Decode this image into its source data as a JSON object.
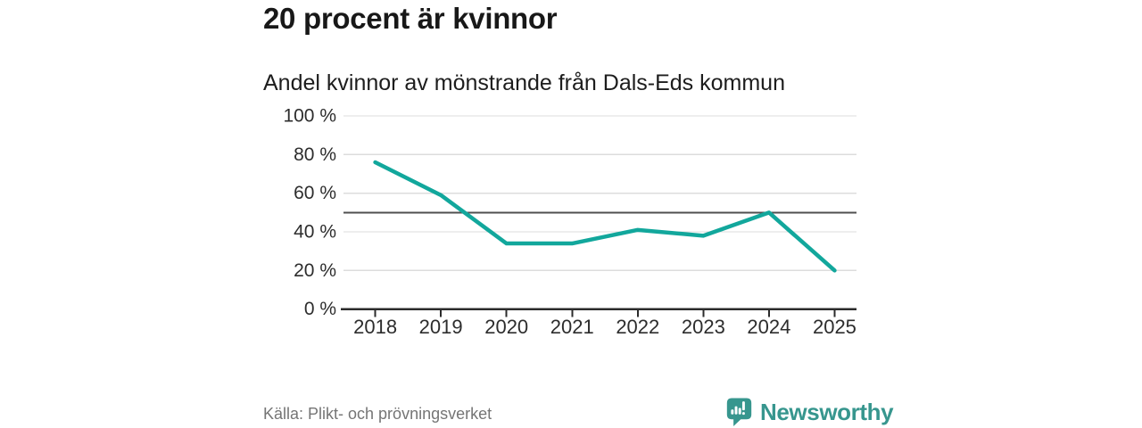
{
  "header": {
    "title": "20 procent är kvinnor",
    "subtitle": "Andel kvinnor av mönstrande från Dals-Eds kommun"
  },
  "chart_data": {
    "type": "line",
    "x": [
      2018,
      2019,
      2020,
      2021,
      2022,
      2023,
      2024,
      2025
    ],
    "x_labels": [
      "2018",
      "2019",
      "2020",
      "2021",
      "2022",
      "2023",
      "2024",
      "2025"
    ],
    "series": [
      {
        "name": "Andel kvinnor av mönstrande",
        "values": [
          76,
          59,
          34,
          34,
          41,
          38,
          50,
          20
        ]
      }
    ],
    "ylim": [
      0,
      100
    ],
    "yticks": [
      0,
      20,
      40,
      60,
      80,
      100
    ],
    "ytick_labels": [
      "0 %",
      "20 %",
      "40 %",
      "60 %",
      "80 %",
      "100 %"
    ],
    "reference_line": {
      "value": 50
    },
    "grid": true,
    "legend": "none",
    "line_color": "#12a79c"
  },
  "footer": {
    "source": "Källa: Plikt- och prövningsverket",
    "logo_text": "Newsworthy"
  },
  "colors": {
    "accent_line": "#12a79c",
    "logo_teal": "#37968e",
    "grid": "#dcdcdc",
    "reference_line": "#4f4f4f",
    "axis": "#2b2b2b",
    "axis_text": "#2d2d2d",
    "source_text": "#757575"
  }
}
